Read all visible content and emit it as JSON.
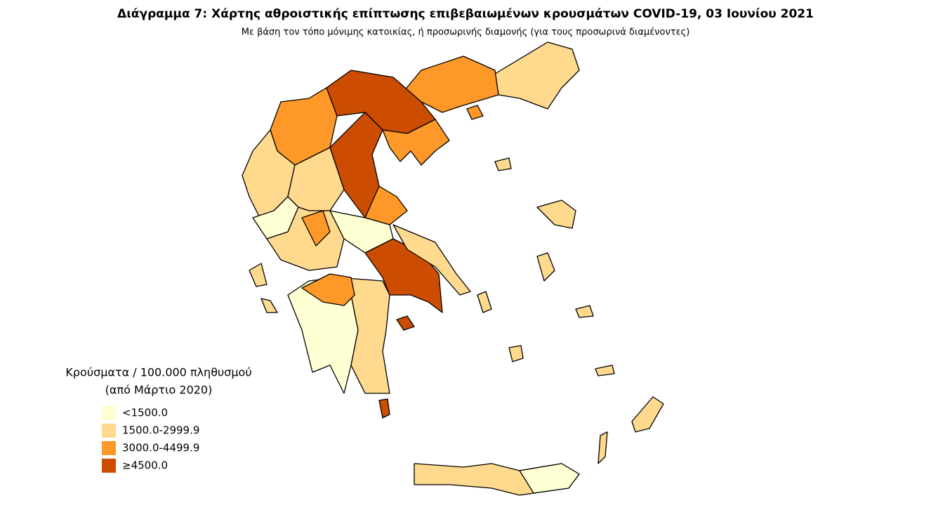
{
  "header": {
    "title": "Διάγραμμα 7: Χάρτης αθροιστικής επίπτωσης επιβεβαιωμένων κρουσμάτων COVID-19, 03 Ιουνίου 2021",
    "subtitle": "Με βάση τον τόπο μόνιμης κατοικίας, ή προσωρινής διαμονής (για τους προσωρινά διαμένοντες)"
  },
  "legend": {
    "title": [
      "Κρούσματα / 100.000 πληθυσμού",
      "(από Μάρτιο 2020)"
    ],
    "items": [
      {
        "label": "<1500.0",
        "color": "#ffffd4"
      },
      {
        "label": "1500.0-2999.9",
        "color": "#fed98e"
      },
      {
        "label": "3000.0-4499.9",
        "color": "#fe9929"
      },
      {
        "label": "≥4500.0",
        "color": "#cc4c02"
      }
    ]
  }
}
